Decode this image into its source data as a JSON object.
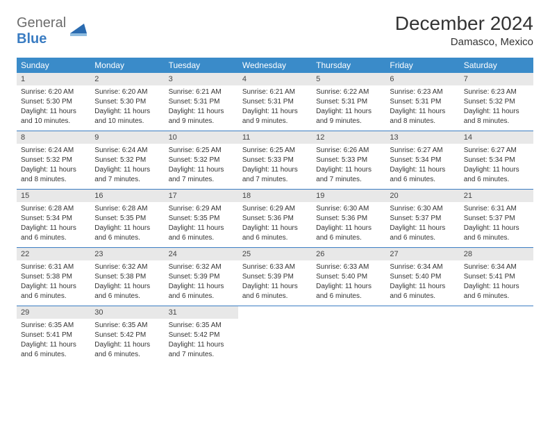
{
  "logo": {
    "text1": "General",
    "text2": "Blue"
  },
  "title": "December 2024",
  "location": "Damasco, Mexico",
  "colors": {
    "header_bg": "#3a8bc9",
    "logo_gray": "#6c6c6c",
    "logo_blue": "#3a7cc2",
    "cell_date_bg": "#e8e8e8",
    "border": "#3a7cc2"
  },
  "dayNames": [
    "Sunday",
    "Monday",
    "Tuesday",
    "Wednesday",
    "Thursday",
    "Friday",
    "Saturday"
  ],
  "weeks": [
    [
      {
        "d": "1",
        "sr": "6:20 AM",
        "ss": "5:30 PM",
        "dl": "11 hours and 10 minutes."
      },
      {
        "d": "2",
        "sr": "6:20 AM",
        "ss": "5:30 PM",
        "dl": "11 hours and 10 minutes."
      },
      {
        "d": "3",
        "sr": "6:21 AM",
        "ss": "5:31 PM",
        "dl": "11 hours and 9 minutes."
      },
      {
        "d": "4",
        "sr": "6:21 AM",
        "ss": "5:31 PM",
        "dl": "11 hours and 9 minutes."
      },
      {
        "d": "5",
        "sr": "6:22 AM",
        "ss": "5:31 PM",
        "dl": "11 hours and 9 minutes."
      },
      {
        "d": "6",
        "sr": "6:23 AM",
        "ss": "5:31 PM",
        "dl": "11 hours and 8 minutes."
      },
      {
        "d": "7",
        "sr": "6:23 AM",
        "ss": "5:32 PM",
        "dl": "11 hours and 8 minutes."
      }
    ],
    [
      {
        "d": "8",
        "sr": "6:24 AM",
        "ss": "5:32 PM",
        "dl": "11 hours and 8 minutes."
      },
      {
        "d": "9",
        "sr": "6:24 AM",
        "ss": "5:32 PM",
        "dl": "11 hours and 7 minutes."
      },
      {
        "d": "10",
        "sr": "6:25 AM",
        "ss": "5:32 PM",
        "dl": "11 hours and 7 minutes."
      },
      {
        "d": "11",
        "sr": "6:25 AM",
        "ss": "5:33 PM",
        "dl": "11 hours and 7 minutes."
      },
      {
        "d": "12",
        "sr": "6:26 AM",
        "ss": "5:33 PM",
        "dl": "11 hours and 7 minutes."
      },
      {
        "d": "13",
        "sr": "6:27 AM",
        "ss": "5:34 PM",
        "dl": "11 hours and 6 minutes."
      },
      {
        "d": "14",
        "sr": "6:27 AM",
        "ss": "5:34 PM",
        "dl": "11 hours and 6 minutes."
      }
    ],
    [
      {
        "d": "15",
        "sr": "6:28 AM",
        "ss": "5:34 PM",
        "dl": "11 hours and 6 minutes."
      },
      {
        "d": "16",
        "sr": "6:28 AM",
        "ss": "5:35 PM",
        "dl": "11 hours and 6 minutes."
      },
      {
        "d": "17",
        "sr": "6:29 AM",
        "ss": "5:35 PM",
        "dl": "11 hours and 6 minutes."
      },
      {
        "d": "18",
        "sr": "6:29 AM",
        "ss": "5:36 PM",
        "dl": "11 hours and 6 minutes."
      },
      {
        "d": "19",
        "sr": "6:30 AM",
        "ss": "5:36 PM",
        "dl": "11 hours and 6 minutes."
      },
      {
        "d": "20",
        "sr": "6:30 AM",
        "ss": "5:37 PM",
        "dl": "11 hours and 6 minutes."
      },
      {
        "d": "21",
        "sr": "6:31 AM",
        "ss": "5:37 PM",
        "dl": "11 hours and 6 minutes."
      }
    ],
    [
      {
        "d": "22",
        "sr": "6:31 AM",
        "ss": "5:38 PM",
        "dl": "11 hours and 6 minutes."
      },
      {
        "d": "23",
        "sr": "6:32 AM",
        "ss": "5:38 PM",
        "dl": "11 hours and 6 minutes."
      },
      {
        "d": "24",
        "sr": "6:32 AM",
        "ss": "5:39 PM",
        "dl": "11 hours and 6 minutes."
      },
      {
        "d": "25",
        "sr": "6:33 AM",
        "ss": "5:39 PM",
        "dl": "11 hours and 6 minutes."
      },
      {
        "d": "26",
        "sr": "6:33 AM",
        "ss": "5:40 PM",
        "dl": "11 hours and 6 minutes."
      },
      {
        "d": "27",
        "sr": "6:34 AM",
        "ss": "5:40 PM",
        "dl": "11 hours and 6 minutes."
      },
      {
        "d": "28",
        "sr": "6:34 AM",
        "ss": "5:41 PM",
        "dl": "11 hours and 6 minutes."
      }
    ],
    [
      {
        "d": "29",
        "sr": "6:35 AM",
        "ss": "5:41 PM",
        "dl": "11 hours and 6 minutes."
      },
      {
        "d": "30",
        "sr": "6:35 AM",
        "ss": "5:42 PM",
        "dl": "11 hours and 6 minutes."
      },
      {
        "d": "31",
        "sr": "6:35 AM",
        "ss": "5:42 PM",
        "dl": "11 hours and 7 minutes."
      },
      null,
      null,
      null,
      null
    ]
  ],
  "labels": {
    "sunrise": "Sunrise:",
    "sunset": "Sunset:",
    "daylight": "Daylight:"
  }
}
